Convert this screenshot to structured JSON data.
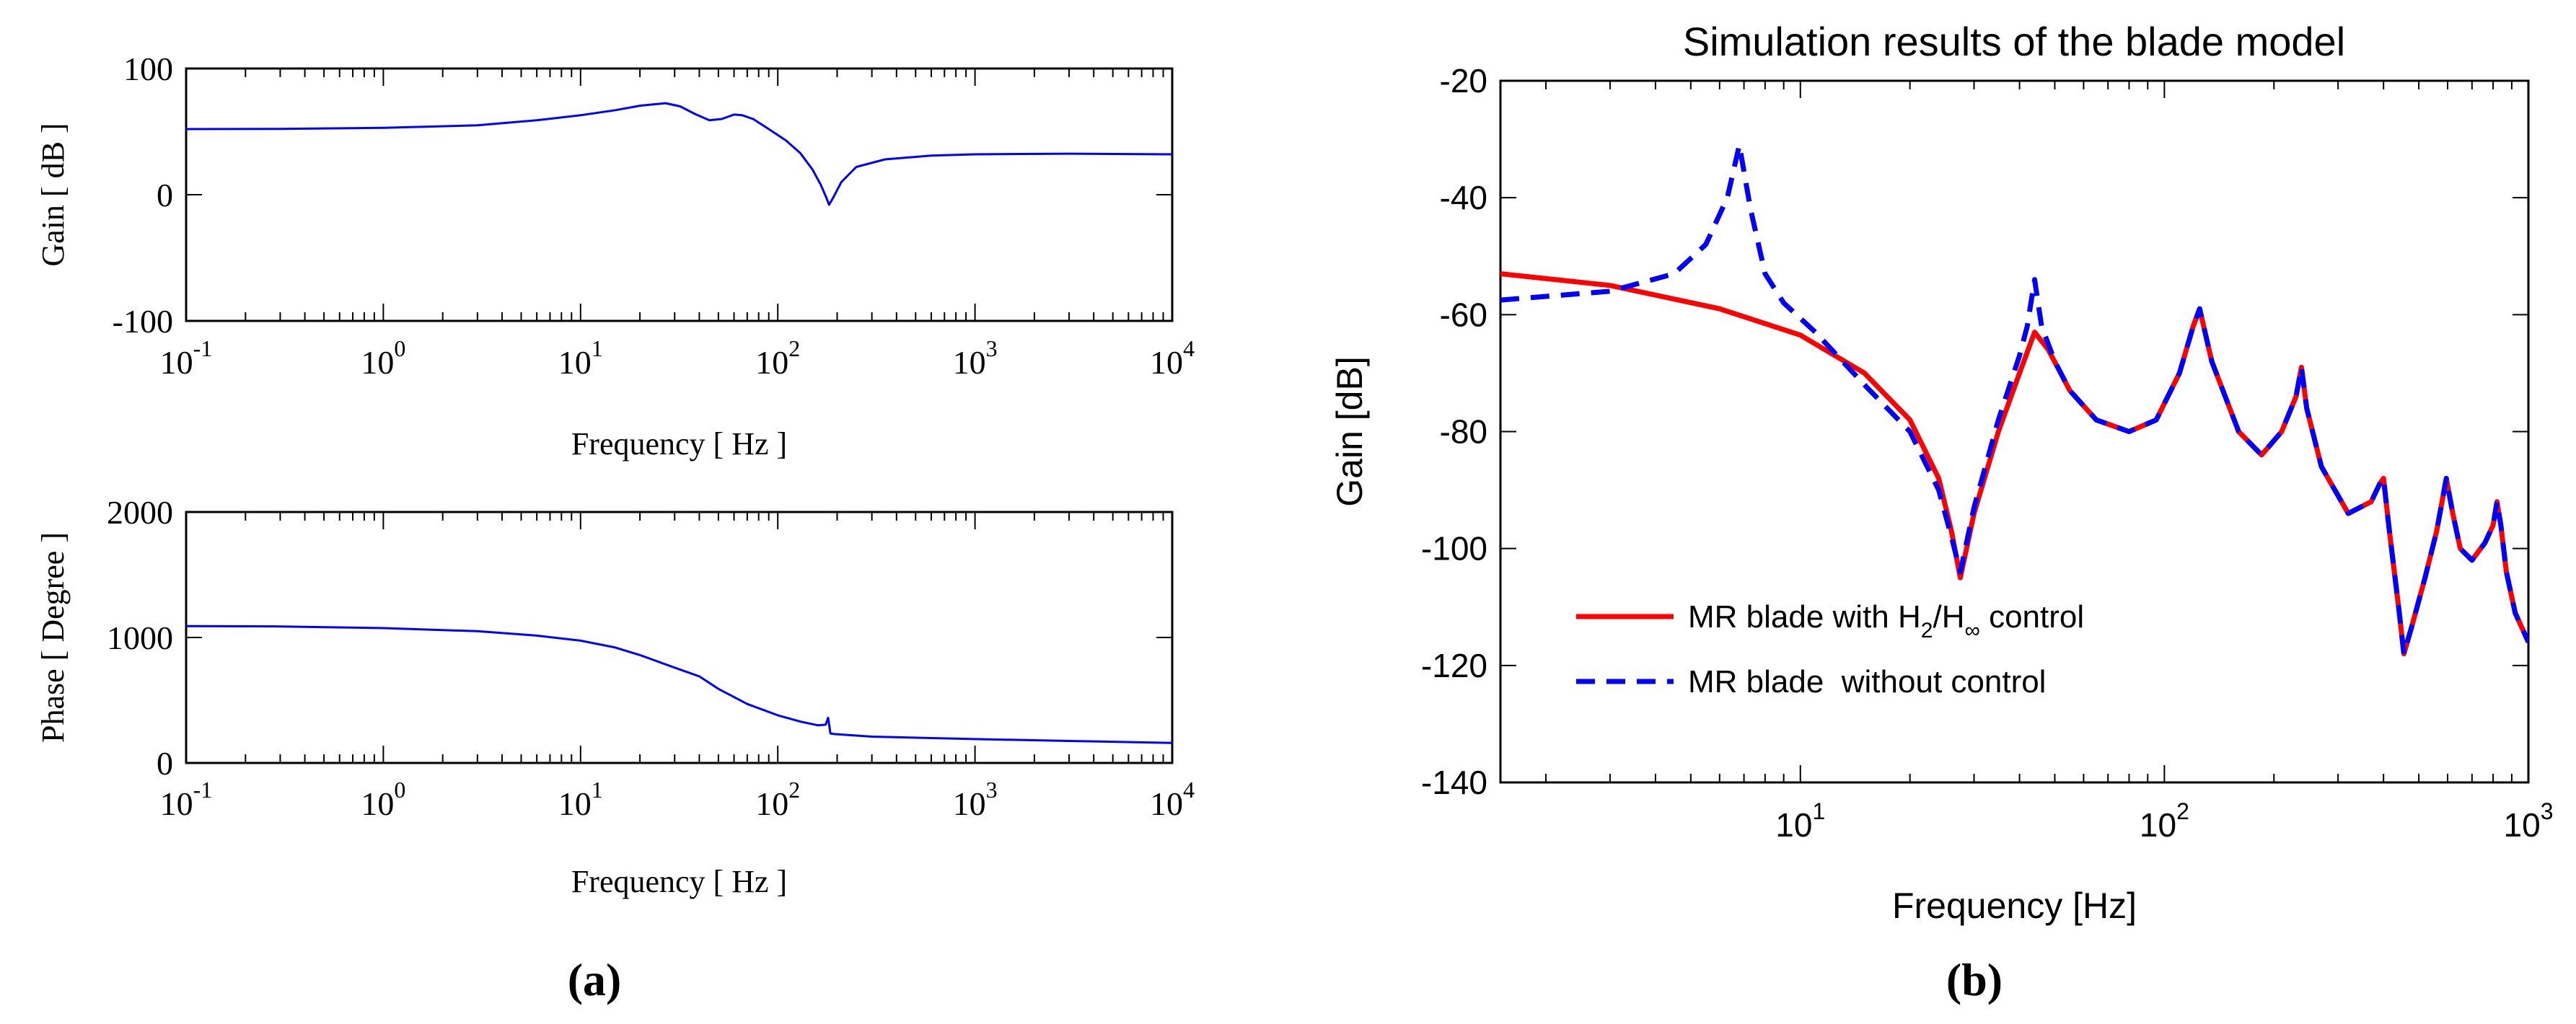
{
  "chart_data": [
    {
      "panel": "a-top",
      "type": "line",
      "title": "",
      "xlabel": "Frequency [ Hz ]",
      "ylabel": "Gain [ dB ]",
      "xscale": "log",
      "xlim": [
        0.1,
        10000
      ],
      "ylim": [
        -100,
        100
      ],
      "yticks": [
        -100,
        0,
        100
      ],
      "xticks": [
        {
          "base": "10",
          "exp": "-1"
        },
        {
          "base": "10",
          "exp": "0"
        },
        {
          "base": "10",
          "exp": "1"
        },
        {
          "base": "10",
          "exp": "2"
        },
        {
          "base": "10",
          "exp": "3"
        },
        {
          "base": "10",
          "exp": "4"
        }
      ],
      "grid": false,
      "series": [
        {
          "color": "#0000ff",
          "style": "solid",
          "x": [
            0.1,
            0.3,
            1,
            3,
            6,
            10,
            15,
            20,
            27,
            32,
            38,
            45,
            52,
            60,
            66,
            75,
            90,
            110,
            130,
            150,
            165,
            176,
            182,
            190,
            210,
            250,
            350,
            600,
            1000,
            3000,
            10000
          ],
          "y": [
            52,
            52.2,
            53,
            55,
            59,
            63,
            67,
            70.5,
            72.5,
            70,
            64,
            59,
            60,
            63.5,
            63,
            60,
            52,
            43,
            33,
            20,
            8,
            -2,
            -8,
            -3,
            10,
            22,
            28,
            31,
            32,
            32.5,
            32
          ]
        }
      ]
    },
    {
      "panel": "a-bottom",
      "type": "line",
      "title": "",
      "xlabel": "Frequency [ Hz ]",
      "ylabel": "Phase [ Degree ]",
      "xscale": "log",
      "xlim": [
        0.1,
        10000
      ],
      "ylim": [
        0,
        2000
      ],
      "yticks": [
        0,
        1000,
        2000
      ],
      "xticks": [
        {
          "base": "10",
          "exp": "-1"
        },
        {
          "base": "10",
          "exp": "0"
        },
        {
          "base": "10",
          "exp": "1"
        },
        {
          "base": "10",
          "exp": "2"
        },
        {
          "base": "10",
          "exp": "3"
        },
        {
          "base": "10",
          "exp": "4"
        }
      ],
      "grid": false,
      "series": [
        {
          "color": "#0000ff",
          "style": "solid",
          "x": [
            0.1,
            0.3,
            1,
            3,
            6,
            10,
            15,
            20,
            30,
            40,
            50,
            70,
            100,
            130,
            160,
            175,
            180,
            185,
            195,
            300,
            1000,
            3000,
            10000
          ],
          "y": [
            1090,
            1088,
            1075,
            1050,
            1015,
            975,
            920,
            860,
            760,
            690,
            590,
            470,
            380,
            330,
            300,
            305,
            360,
            235,
            230,
            210,
            190,
            175,
            160
          ]
        }
      ]
    },
    {
      "panel": "b",
      "type": "line",
      "title": "Simulation results of the blade model",
      "xlabel": "Frequency [Hz]",
      "ylabel": "Gain [dB]",
      "xscale": "log",
      "xlim": [
        1.5,
        1000
      ],
      "ylim": [
        -140,
        -20
      ],
      "yticks": [
        -140,
        -120,
        -100,
        -80,
        -60,
        -40,
        -20
      ],
      "xticks": [
        {
          "base": "10",
          "exp": "1"
        },
        {
          "base": "10",
          "exp": "2"
        },
        {
          "base": "10",
          "exp": "3"
        }
      ],
      "grid": false,
      "legend_position": "lower-left",
      "series": [
        {
          "name": "MR blade with H2/H∞ control",
          "color": "#ff0000",
          "style": "solid",
          "x": [
            1.5,
            3,
            6,
            10,
            15,
            20,
            24,
            26,
            27.5,
            30,
            35,
            40,
            44,
            48,
            55,
            65,
            80,
            95,
            110,
            120,
            125,
            135,
            160,
            185,
            210,
            230,
            238,
            246,
            270,
            320,
            370,
            390,
            400,
            415,
            440,
            455,
            480,
            520,
            560,
            595,
            620,
            650,
            700,
            760,
            800,
            820,
            840,
            870,
            920,
            1000
          ],
          "y": [
            -53,
            -55,
            -59,
            -63.5,
            -70,
            -78,
            -88,
            -97,
            -105,
            -94,
            -80,
            -70,
            -63,
            -66,
            -73,
            -78,
            -80,
            -78,
            -70,
            -62,
            -59,
            -68,
            -80,
            -84,
            -80,
            -74,
            -69,
            -76,
            -86,
            -94,
            -92,
            -89,
            -88,
            -97,
            -110,
            -118,
            -113,
            -105,
            -97,
            -88,
            -94,
            -100,
            -102,
            -99,
            -96,
            -92,
            -96,
            -104,
            -111,
            -116
          ]
        },
        {
          "name": "MR blade without control",
          "color": "#0000ff",
          "style": "dashed",
          "x": [
            1.5,
            3,
            4.5,
            5.5,
            6.3,
            6.8,
            7.3,
            8,
            9,
            11,
            15,
            20,
            24,
            26,
            27.5,
            30,
            35,
            40,
            42,
            44,
            46,
            50,
            55,
            65,
            80,
            95,
            110,
            120,
            125,
            135,
            160,
            185,
            210,
            230,
            238,
            246,
            270,
            320,
            370,
            390,
            400,
            415,
            440,
            455,
            480,
            520,
            560,
            595,
            620,
            650,
            700,
            760,
            800,
            820,
            840,
            870,
            920,
            1000
          ],
          "y": [
            -57.5,
            -56,
            -53,
            -48,
            -40,
            -31,
            -42,
            -53,
            -58,
            -63,
            -72,
            -80,
            -90,
            -98,
            -104,
            -93,
            -78,
            -67,
            -62,
            -54,
            -62,
            -68,
            -73,
            -78,
            -80,
            -78,
            -70,
            -62,
            -59,
            -68,
            -80,
            -84,
            -80,
            -74,
            -69,
            -76,
            -86,
            -94,
            -92,
            -89,
            -88,
            -97,
            -110,
            -118,
            -113,
            -105,
            -97,
            -88,
            -94,
            -100,
            -102,
            -99,
            -96,
            -92,
            -96,
            -104,
            -111,
            -116
          ]
        }
      ]
    }
  ],
  "legend": {
    "item1_prefix": "MR blade with H",
    "item1_sub1": "2",
    "item1_mid": "/H",
    "item1_sub2": "∞",
    "item1_suffix": " control",
    "item2": "MR blade  without control"
  },
  "captions": {
    "a": "(a)",
    "b": "(b)"
  }
}
